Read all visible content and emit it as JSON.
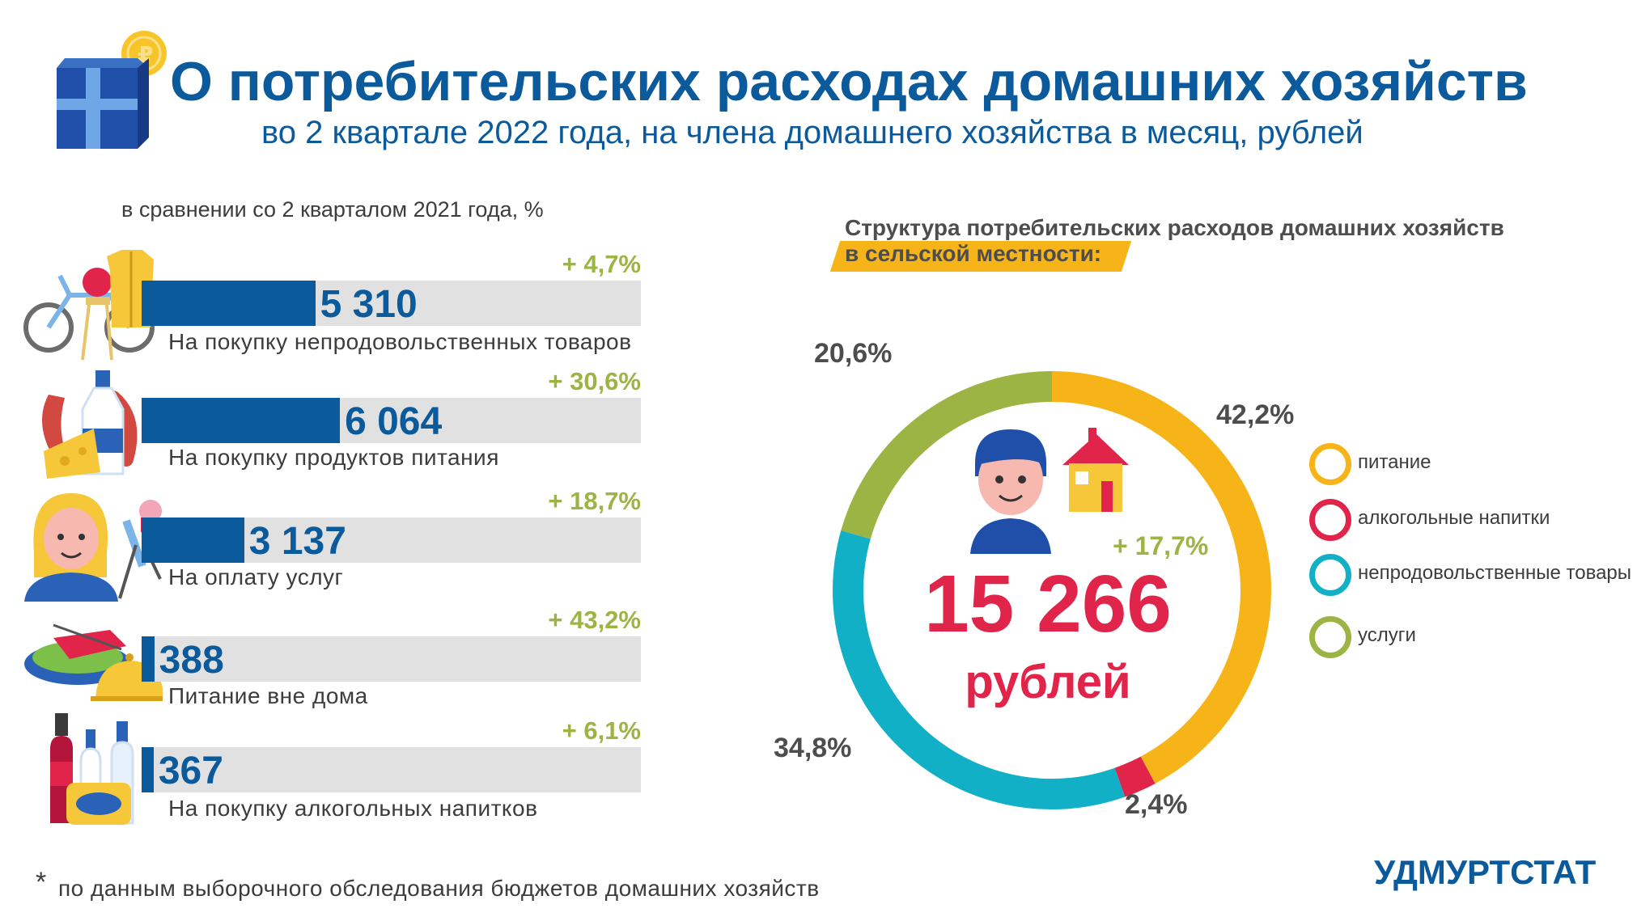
{
  "header": {
    "title": "О потребительских расходах домашних хозяйств",
    "subtitle": "во 2 квартале 2022 года, на члена домашнего хозяйства в месяц, рублей"
  },
  "bars_section": {
    "note": "в сравнении со 2 кварталом 2021 года, %"
  },
  "structure_section": {
    "title_line1": "Структура потребительских расходов домашних хозяйств",
    "title_line2": "в сельской местности:"
  },
  "total": {
    "change": "+ 17,7%",
    "value": "15 266",
    "unit": "рублей"
  },
  "footer": {
    "star": "*",
    "note": "по данным выборочного обследования бюджетов домашних хозяйств",
    "brand": "УДМУРТСТАТ"
  },
  "colors": {
    "brand_blue": "#0b5a9c",
    "food": "#f7b418",
    "alcohol": "#e0244a",
    "nonfood": "#12b0c6",
    "services": "#9bb444",
    "bar_background": "#e1e1e1"
  },
  "chart_data": [
    {
      "type": "bar",
      "orientation": "horizontal",
      "categories": [
        "На покупку  непродовольственных  товаров",
        "На покупку  продуктов  питания",
        "На оплату  услуг",
        "Питание вне дома",
        "На покупку  алкогольных напитков"
      ],
      "values": [
        5310,
        6064,
        3137,
        388,
        367
      ],
      "value_labels": [
        "5 310",
        "6 064",
        "3 137",
        "388",
        "367"
      ],
      "changes": [
        "+ 4,7%",
        "+ 30,6%",
        "+ 18,7%",
        "+ 43,2%",
        "+ 6,1%"
      ],
      "xlim": [
        0,
        15266
      ],
      "icons": [
        "clothing-bicycle-chair-icon",
        "sausage-milk-cheese-icon",
        "woman-beauty-services-icon",
        "restaurant-dish-icon",
        "bottles-icon"
      ]
    },
    {
      "type": "pie",
      "donut": true,
      "categories": [
        "питание",
        "алкогольные напитки",
        "непродовольственные товары",
        "услуги"
      ],
      "values": [
        42.2,
        2.4,
        34.8,
        20.6
      ],
      "value_labels": [
        "42,2%",
        "2,4%",
        "34,8%",
        "20,6%"
      ],
      "colors": [
        "#f7b418",
        "#e0244a",
        "#12b0c6",
        "#9bb444"
      ],
      "legend": "right"
    }
  ]
}
